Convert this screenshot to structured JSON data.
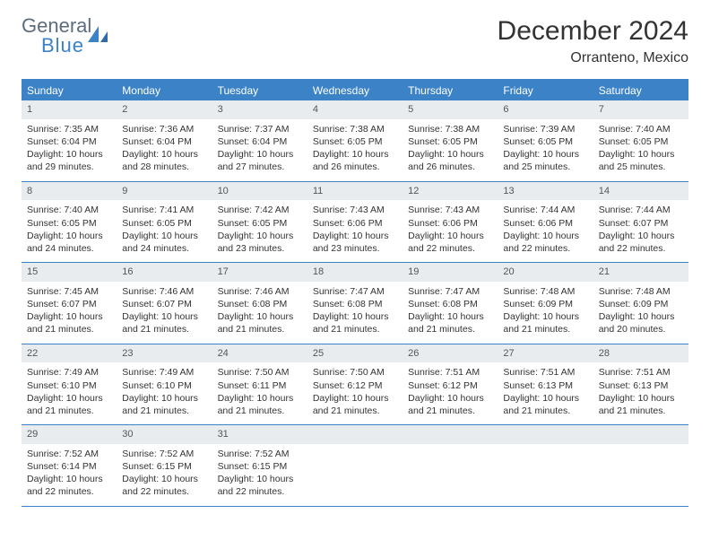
{
  "logo": {
    "general": "General",
    "blue": "Blue"
  },
  "title": "December 2024",
  "location": "Orranteno, Mexico",
  "styling": {
    "accent_color": "#3b82c7",
    "header_bg": "#3b82c7",
    "header_text_color": "#ffffff",
    "day_num_bg": "#e8ecef",
    "text_color": "#333333",
    "logo_gray": "#5d6d7e",
    "font_family": "Arial",
    "title_fontsize": 30,
    "location_fontsize": 16,
    "header_fontsize": 12,
    "cell_fontsize": 10.5,
    "columns": 7
  },
  "day_headers": [
    "Sunday",
    "Monday",
    "Tuesday",
    "Wednesday",
    "Thursday",
    "Friday",
    "Saturday"
  ],
  "weeks": [
    [
      {
        "num": "1",
        "sunrise": "Sunrise: 7:35 AM",
        "sunset": "Sunset: 6:04 PM",
        "daylight1": "Daylight: 10 hours",
        "daylight2": "and 29 minutes."
      },
      {
        "num": "2",
        "sunrise": "Sunrise: 7:36 AM",
        "sunset": "Sunset: 6:04 PM",
        "daylight1": "Daylight: 10 hours",
        "daylight2": "and 28 minutes."
      },
      {
        "num": "3",
        "sunrise": "Sunrise: 7:37 AM",
        "sunset": "Sunset: 6:04 PM",
        "daylight1": "Daylight: 10 hours",
        "daylight2": "and 27 minutes."
      },
      {
        "num": "4",
        "sunrise": "Sunrise: 7:38 AM",
        "sunset": "Sunset: 6:05 PM",
        "daylight1": "Daylight: 10 hours",
        "daylight2": "and 26 minutes."
      },
      {
        "num": "5",
        "sunrise": "Sunrise: 7:38 AM",
        "sunset": "Sunset: 6:05 PM",
        "daylight1": "Daylight: 10 hours",
        "daylight2": "and 26 minutes."
      },
      {
        "num": "6",
        "sunrise": "Sunrise: 7:39 AM",
        "sunset": "Sunset: 6:05 PM",
        "daylight1": "Daylight: 10 hours",
        "daylight2": "and 25 minutes."
      },
      {
        "num": "7",
        "sunrise": "Sunrise: 7:40 AM",
        "sunset": "Sunset: 6:05 PM",
        "daylight1": "Daylight: 10 hours",
        "daylight2": "and 25 minutes."
      }
    ],
    [
      {
        "num": "8",
        "sunrise": "Sunrise: 7:40 AM",
        "sunset": "Sunset: 6:05 PM",
        "daylight1": "Daylight: 10 hours",
        "daylight2": "and 24 minutes."
      },
      {
        "num": "9",
        "sunrise": "Sunrise: 7:41 AM",
        "sunset": "Sunset: 6:05 PM",
        "daylight1": "Daylight: 10 hours",
        "daylight2": "and 24 minutes."
      },
      {
        "num": "10",
        "sunrise": "Sunrise: 7:42 AM",
        "sunset": "Sunset: 6:05 PM",
        "daylight1": "Daylight: 10 hours",
        "daylight2": "and 23 minutes."
      },
      {
        "num": "11",
        "sunrise": "Sunrise: 7:43 AM",
        "sunset": "Sunset: 6:06 PM",
        "daylight1": "Daylight: 10 hours",
        "daylight2": "and 23 minutes."
      },
      {
        "num": "12",
        "sunrise": "Sunrise: 7:43 AM",
        "sunset": "Sunset: 6:06 PM",
        "daylight1": "Daylight: 10 hours",
        "daylight2": "and 22 minutes."
      },
      {
        "num": "13",
        "sunrise": "Sunrise: 7:44 AM",
        "sunset": "Sunset: 6:06 PM",
        "daylight1": "Daylight: 10 hours",
        "daylight2": "and 22 minutes."
      },
      {
        "num": "14",
        "sunrise": "Sunrise: 7:44 AM",
        "sunset": "Sunset: 6:07 PM",
        "daylight1": "Daylight: 10 hours",
        "daylight2": "and 22 minutes."
      }
    ],
    [
      {
        "num": "15",
        "sunrise": "Sunrise: 7:45 AM",
        "sunset": "Sunset: 6:07 PM",
        "daylight1": "Daylight: 10 hours",
        "daylight2": "and 21 minutes."
      },
      {
        "num": "16",
        "sunrise": "Sunrise: 7:46 AM",
        "sunset": "Sunset: 6:07 PM",
        "daylight1": "Daylight: 10 hours",
        "daylight2": "and 21 minutes."
      },
      {
        "num": "17",
        "sunrise": "Sunrise: 7:46 AM",
        "sunset": "Sunset: 6:08 PM",
        "daylight1": "Daylight: 10 hours",
        "daylight2": "and 21 minutes."
      },
      {
        "num": "18",
        "sunrise": "Sunrise: 7:47 AM",
        "sunset": "Sunset: 6:08 PM",
        "daylight1": "Daylight: 10 hours",
        "daylight2": "and 21 minutes."
      },
      {
        "num": "19",
        "sunrise": "Sunrise: 7:47 AM",
        "sunset": "Sunset: 6:08 PM",
        "daylight1": "Daylight: 10 hours",
        "daylight2": "and 21 minutes."
      },
      {
        "num": "20",
        "sunrise": "Sunrise: 7:48 AM",
        "sunset": "Sunset: 6:09 PM",
        "daylight1": "Daylight: 10 hours",
        "daylight2": "and 21 minutes."
      },
      {
        "num": "21",
        "sunrise": "Sunrise: 7:48 AM",
        "sunset": "Sunset: 6:09 PM",
        "daylight1": "Daylight: 10 hours",
        "daylight2": "and 20 minutes."
      }
    ],
    [
      {
        "num": "22",
        "sunrise": "Sunrise: 7:49 AM",
        "sunset": "Sunset: 6:10 PM",
        "daylight1": "Daylight: 10 hours",
        "daylight2": "and 21 minutes."
      },
      {
        "num": "23",
        "sunrise": "Sunrise: 7:49 AM",
        "sunset": "Sunset: 6:10 PM",
        "daylight1": "Daylight: 10 hours",
        "daylight2": "and 21 minutes."
      },
      {
        "num": "24",
        "sunrise": "Sunrise: 7:50 AM",
        "sunset": "Sunset: 6:11 PM",
        "daylight1": "Daylight: 10 hours",
        "daylight2": "and 21 minutes."
      },
      {
        "num": "25",
        "sunrise": "Sunrise: 7:50 AM",
        "sunset": "Sunset: 6:12 PM",
        "daylight1": "Daylight: 10 hours",
        "daylight2": "and 21 minutes."
      },
      {
        "num": "26",
        "sunrise": "Sunrise: 7:51 AM",
        "sunset": "Sunset: 6:12 PM",
        "daylight1": "Daylight: 10 hours",
        "daylight2": "and 21 minutes."
      },
      {
        "num": "27",
        "sunrise": "Sunrise: 7:51 AM",
        "sunset": "Sunset: 6:13 PM",
        "daylight1": "Daylight: 10 hours",
        "daylight2": "and 21 minutes."
      },
      {
        "num": "28",
        "sunrise": "Sunrise: 7:51 AM",
        "sunset": "Sunset: 6:13 PM",
        "daylight1": "Daylight: 10 hours",
        "daylight2": "and 21 minutes."
      }
    ],
    [
      {
        "num": "29",
        "sunrise": "Sunrise: 7:52 AM",
        "sunset": "Sunset: 6:14 PM",
        "daylight1": "Daylight: 10 hours",
        "daylight2": "and 22 minutes."
      },
      {
        "num": "30",
        "sunrise": "Sunrise: 7:52 AM",
        "sunset": "Sunset: 6:15 PM",
        "daylight1": "Daylight: 10 hours",
        "daylight2": "and 22 minutes."
      },
      {
        "num": "31",
        "sunrise": "Sunrise: 7:52 AM",
        "sunset": "Sunset: 6:15 PM",
        "daylight1": "Daylight: 10 hours",
        "daylight2": "and 22 minutes."
      },
      {
        "empty": true
      },
      {
        "empty": true
      },
      {
        "empty": true
      },
      {
        "empty": true
      }
    ]
  ]
}
